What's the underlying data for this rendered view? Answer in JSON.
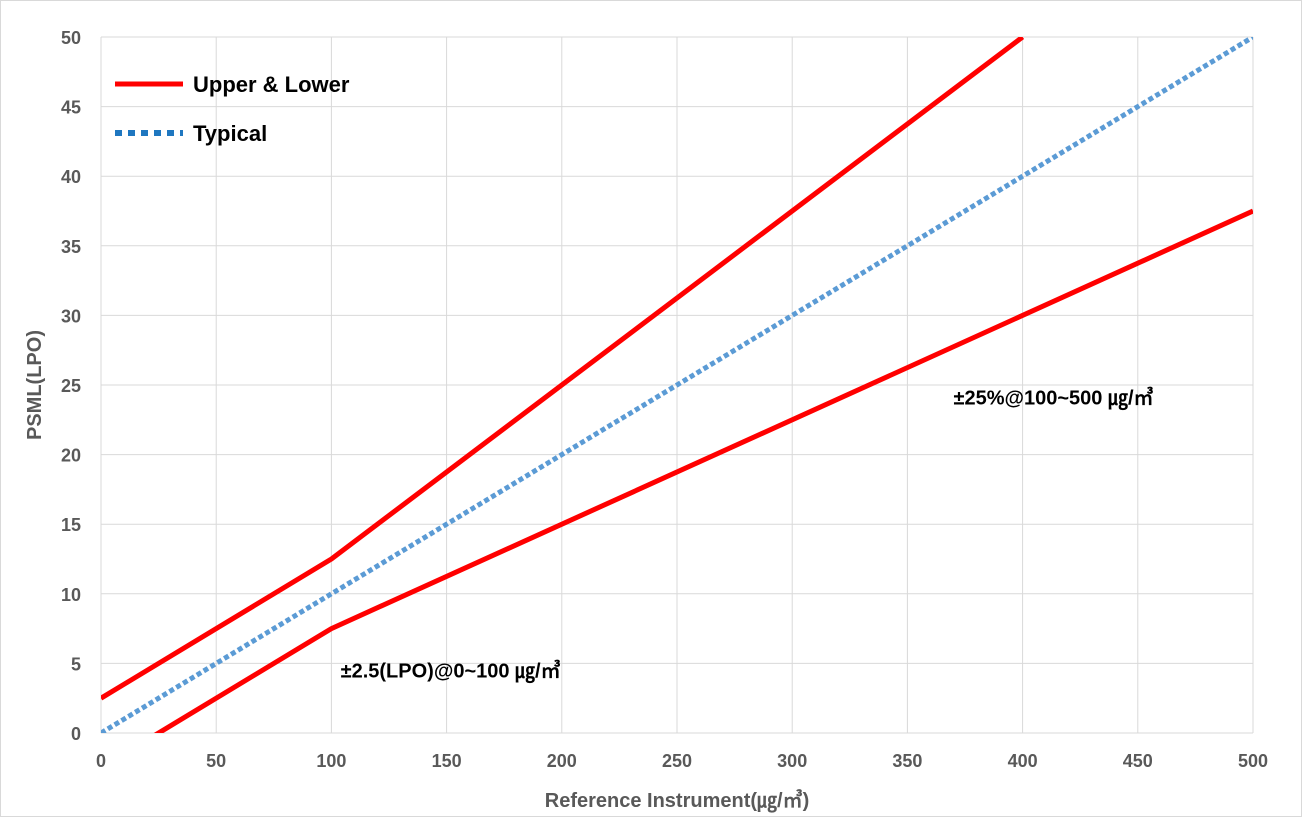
{
  "chart_data": {
    "type": "line",
    "title": "",
    "xlabel": "Reference Instrument(㎍/㎥)",
    "ylabel": "PSML(LPO)",
    "xlim": [
      0,
      500
    ],
    "ylim": [
      0,
      50
    ],
    "x_ticks": [
      0,
      50,
      100,
      150,
      200,
      250,
      300,
      350,
      400,
      450,
      500
    ],
    "y_ticks": [
      0,
      5,
      10,
      15,
      20,
      25,
      30,
      35,
      40,
      45,
      50
    ],
    "grid": "vertical and horizontal",
    "legend_position": "top-left",
    "series": [
      {
        "name": "Upper & Lower",
        "style": "solid",
        "color": "#ff0000",
        "segments": [
          {
            "x": [
              0,
              100,
              400
            ],
            "y": [
              2.5,
              12.5,
              50
            ]
          },
          {
            "x": [
              0,
              100,
              500
            ],
            "y": [
              -2.5,
              7.5,
              37.5
            ]
          }
        ]
      },
      {
        "name": "Typical",
        "style": "dotted",
        "color": "#5b9bd5",
        "segments": [
          {
            "x": [
              0,
              500
            ],
            "y": [
              0,
              50
            ]
          }
        ]
      }
    ],
    "annotations": [
      {
        "text": "±25%@100~500 ㎍/㎥",
        "x": 370,
        "y": 23.6
      },
      {
        "text": "±2.5(LPO)@0~100 ㎍/㎥",
        "x": 104,
        "y": 4.0
      }
    ]
  }
}
